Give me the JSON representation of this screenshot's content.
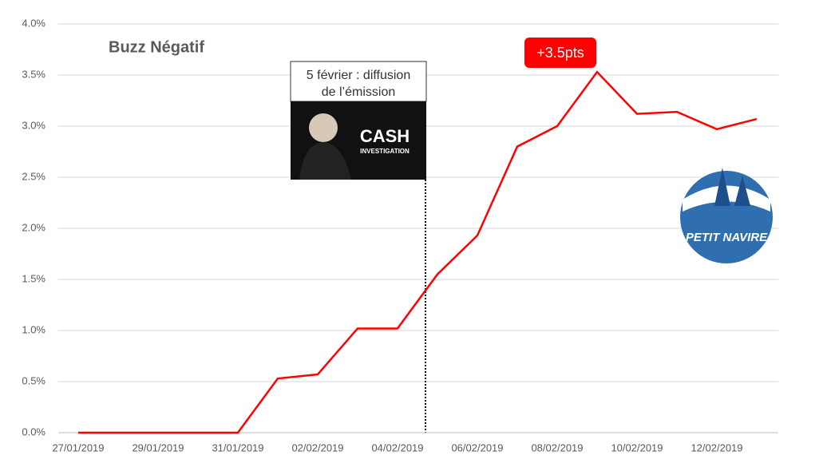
{
  "chart_data": {
    "type": "line",
    "title": "Buzz Négatif",
    "categories": [
      "27/01/2019",
      null,
      "29/01/2019",
      null,
      "31/01/2019",
      null,
      "02/02/2019",
      null,
      "04/02/2019",
      null,
      "06/02/2019",
      null,
      "08/02/2019",
      null,
      "10/02/2019",
      null,
      "12/02/2019",
      null
    ],
    "series": [
      {
        "name": "Buzz Négatif",
        "color": "#ff0000",
        "values": [
          0,
          0,
          0,
          0,
          0,
          0.53,
          0.57,
          1.02,
          1.02,
          1.55,
          1.93,
          2.8,
          3.0,
          3.53,
          3.12,
          3.14,
          2.97,
          3.07
        ]
      }
    ],
    "ylim": [
      0,
      4
    ],
    "yticks": [
      {
        "value": 0,
        "label": "0.0%"
      },
      {
        "value": 0.5,
        "label": "0.5%"
      },
      {
        "value": 1,
        "label": "1.0%"
      },
      {
        "value": 1.5,
        "label": "1.5%"
      },
      {
        "value": 2,
        "label": "2.0%"
      },
      {
        "value": 2.5,
        "label": "2.5%"
      },
      {
        "value": 3,
        "label": "3.0%"
      },
      {
        "value": 3.5,
        "label": "3.5%"
      },
      {
        "value": 4,
        "label": "4.0%"
      }
    ],
    "grid": true,
    "annotations": {
      "event": [
        "5 février : diffusion",
        "de l’émission"
      ],
      "peak": "+3.5pts",
      "show_logo": [
        "CASH",
        "INVESTIGATION"
      ],
      "brand_logo": "PETIT NAVIRE"
    }
  }
}
